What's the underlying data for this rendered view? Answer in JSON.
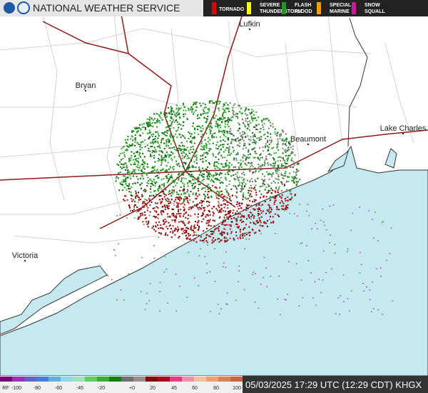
{
  "header": {
    "title": "NATIONAL WEATHER SERVICE"
  },
  "warnings": [
    {
      "lines": [
        "TORNADO"
      ],
      "color": "#e00000"
    },
    {
      "lines": [
        "SEVERE",
        "THUNDERSTORM"
      ],
      "color": "#ffff00"
    },
    {
      "lines": [
        "FLASH",
        "FLOOD"
      ],
      "color": "#1e9a1e"
    },
    {
      "lines": [
        "SPECIAL",
        "MARINE"
      ],
      "color": "#ff9900"
    },
    {
      "lines": [
        "SNOW",
        "SQUALL"
      ],
      "color": "#cc1a99"
    }
  ],
  "cities": [
    "Lufkin",
    "Bryan",
    "Beaumont",
    "Lake Charles",
    "Victoria"
  ],
  "scale": {
    "labels": [
      "RF",
      "-100",
      "-80",
      "-60",
      "-45",
      "-20",
      "+0",
      "20",
      "45",
      "60",
      "80",
      "100"
    ]
  },
  "timestamp": "05/03/2025 17:29 UTC (12:29 CDT) KHGX"
}
